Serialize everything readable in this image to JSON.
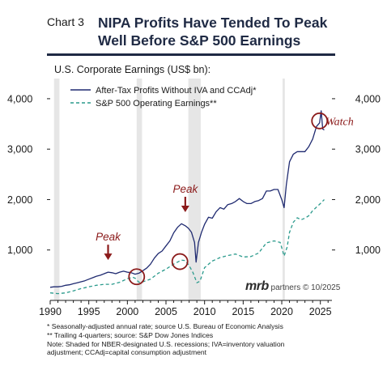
{
  "header": {
    "chart_label": "Chart 3",
    "title_lines": [
      "NIPA Profits Have Tended To Peak",
      "Well Before S&P 500 Earnings"
    ]
  },
  "colors": {
    "navy": "#1f2a70",
    "teal": "#2a9a8c",
    "annotation": "#8b1a1a",
    "recession": "#e6e6e6"
  },
  "brand": {
    "mark": "mrb",
    "text": "partners © 10/2025"
  },
  "annotations": [
    {
      "text": "Peak",
      "type": "arrow-label",
      "x": 1997.5,
      "y": 800
    },
    {
      "text": "Peak",
      "type": "arrow-label",
      "x": 2007.5,
      "y": 1750
    },
    {
      "text": "Watch",
      "type": "label",
      "x": 2027.5,
      "y": 3560
    },
    {
      "type": "circle",
      "x": 2001.2,
      "y": 470
    },
    {
      "type": "circle",
      "x": 2006.8,
      "y": 770
    },
    {
      "type": "circle",
      "x": 2024.9,
      "y": 3560
    }
  ],
  "footnotes": [
    "*  Seasonally-adjusted annual rate; source U.S. Bureau of Economic Analysis",
    "** Trailing 4-quarters; source: S&P Dow Jones Indices",
    "Note: Shaded for NBER-designated U.S. recessions; IVA=inventory valuation",
    "adjustment; CCAdj=capital consumption adjustment"
  ],
  "chart_data": {
    "type": "line",
    "ylabel": "U.S. Corporate Earnings (US$ bn):",
    "xlim": [
      1990,
      2026.5
    ],
    "ylim": [
      0,
      4400
    ],
    "x_ticks": [
      1990,
      1995,
      2000,
      2005,
      2010,
      2015,
      2020,
      2025
    ],
    "y_ticks": [
      1000,
      2000,
      3000,
      4000
    ],
    "y_tick_labels": [
      "1,000",
      "2,000",
      "3,000",
      "4,000"
    ],
    "grid": false,
    "legend_position": "top-left",
    "recessions": [
      [
        1990.5,
        1991.2
      ],
      [
        2001.2,
        2001.9
      ],
      [
        2007.9,
        2009.5
      ],
      [
        2020.1,
        2020.4
      ]
    ],
    "series": [
      {
        "name": "After-Tax Profits Without IVA and CCAdj*",
        "style": "solid",
        "points": [
          [
            1990.0,
            260
          ],
          [
            1990.5,
            270
          ],
          [
            1991.0,
            270
          ],
          [
            1991.5,
            280
          ],
          [
            1992.0,
            300
          ],
          [
            1992.5,
            310
          ],
          [
            1993.0,
            330
          ],
          [
            1993.5,
            350
          ],
          [
            1994.0,
            370
          ],
          [
            1994.5,
            390
          ],
          [
            1995.0,
            420
          ],
          [
            1995.5,
            450
          ],
          [
            1996.0,
            480
          ],
          [
            1996.5,
            500
          ],
          [
            1997.0,
            530
          ],
          [
            1997.5,
            560
          ],
          [
            1998.0,
            550
          ],
          [
            1998.5,
            530
          ],
          [
            1999.0,
            560
          ],
          [
            1999.5,
            580
          ],
          [
            2000.0,
            560
          ],
          [
            2000.5,
            550
          ],
          [
            2001.0,
            520
          ],
          [
            2001.5,
            540
          ],
          [
            2002.0,
            590
          ],
          [
            2002.5,
            640
          ],
          [
            2003.0,
            720
          ],
          [
            2003.5,
            840
          ],
          [
            2004.0,
            930
          ],
          [
            2004.5,
            980
          ],
          [
            2005.0,
            1080
          ],
          [
            2005.5,
            1180
          ],
          [
            2006.0,
            1340
          ],
          [
            2006.5,
            1450
          ],
          [
            2007.0,
            1520
          ],
          [
            2007.5,
            1480
          ],
          [
            2007.9,
            1430
          ],
          [
            2008.3,
            1350
          ],
          [
            2008.7,
            1150
          ],
          [
            2008.9,
            760
          ],
          [
            2009.2,
            1150
          ],
          [
            2009.6,
            1350
          ],
          [
            2010.0,
            1510
          ],
          [
            2010.5,
            1650
          ],
          [
            2011.0,
            1630
          ],
          [
            2011.5,
            1760
          ],
          [
            2012.0,
            1840
          ],
          [
            2012.5,
            1810
          ],
          [
            2013.0,
            1900
          ],
          [
            2013.5,
            1920
          ],
          [
            2014.0,
            1960
          ],
          [
            2014.5,
            2020
          ],
          [
            2015.0,
            1960
          ],
          [
            2015.5,
            1920
          ],
          [
            2016.0,
            1920
          ],
          [
            2016.5,
            1960
          ],
          [
            2017.0,
            1980
          ],
          [
            2017.5,
            2020
          ],
          [
            2018.0,
            2170
          ],
          [
            2018.5,
            2170
          ],
          [
            2019.0,
            2200
          ],
          [
            2019.5,
            2200
          ],
          [
            2020.0,
            2000
          ],
          [
            2020.3,
            1840
          ],
          [
            2020.6,
            2300
          ],
          [
            2021.0,
            2750
          ],
          [
            2021.5,
            2900
          ],
          [
            2022.0,
            2950
          ],
          [
            2022.5,
            2950
          ],
          [
            2023.0,
            2950
          ],
          [
            2023.5,
            3050
          ],
          [
            2024.0,
            3200
          ],
          [
            2024.5,
            3450
          ],
          [
            2024.9,
            3520
          ],
          [
            2025.1,
            3760
          ],
          [
            2025.3,
            3400
          ],
          [
            2025.5,
            3380
          ]
        ]
      },
      {
        "name": "S&P 500 Operating Earnings**",
        "style": "dashed",
        "points": [
          [
            1990.0,
            150
          ],
          [
            1991.0,
            135
          ],
          [
            1992.0,
            150
          ],
          [
            1993.0,
            190
          ],
          [
            1994.0,
            235
          ],
          [
            1995.0,
            270
          ],
          [
            1996.0,
            300
          ],
          [
            1997.0,
            320
          ],
          [
            1998.0,
            320
          ],
          [
            1999.0,
            360
          ],
          [
            2000.0,
            430
          ],
          [
            2000.7,
            460
          ],
          [
            2001.0,
            440
          ],
          [
            2001.5,
            360
          ],
          [
            2002.0,
            370
          ],
          [
            2003.0,
            420
          ],
          [
            2004.0,
            540
          ],
          [
            2005.0,
            620
          ],
          [
            2006.0,
            720
          ],
          [
            2007.0,
            800
          ],
          [
            2007.5,
            790
          ],
          [
            2008.0,
            690
          ],
          [
            2008.5,
            550
          ],
          [
            2009.0,
            350
          ],
          [
            2009.4,
            380
          ],
          [
            2010.0,
            650
          ],
          [
            2011.0,
            780
          ],
          [
            2012.0,
            850
          ],
          [
            2013.0,
            890
          ],
          [
            2014.0,
            920
          ],
          [
            2015.0,
            860
          ],
          [
            2016.0,
            870
          ],
          [
            2017.0,
            940
          ],
          [
            2018.0,
            1140
          ],
          [
            2019.0,
            1180
          ],
          [
            2019.8,
            1150
          ],
          [
            2020.3,
            880
          ],
          [
            2020.7,
            1060
          ],
          [
            2021.0,
            1350
          ],
          [
            2021.5,
            1550
          ],
          [
            2022.0,
            1640
          ],
          [
            2022.5,
            1600
          ],
          [
            2023.0,
            1630
          ],
          [
            2023.5,
            1680
          ],
          [
            2024.0,
            1780
          ],
          [
            2024.5,
            1850
          ],
          [
            2025.0,
            1920
          ],
          [
            2025.5,
            2000
          ]
        ]
      }
    ]
  }
}
